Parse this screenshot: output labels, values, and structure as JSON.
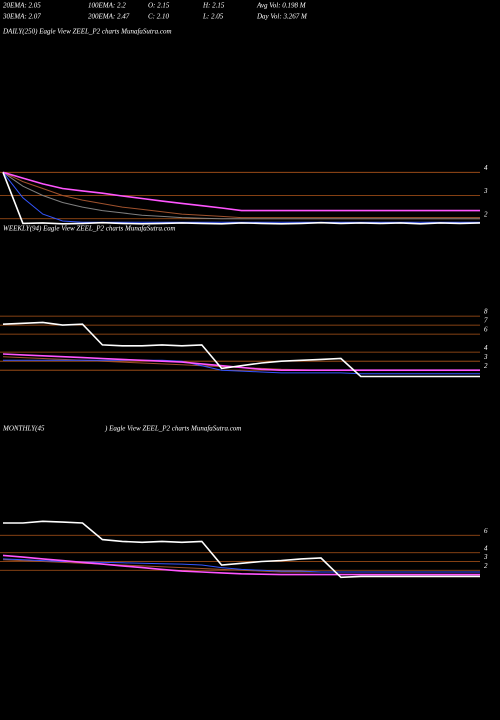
{
  "header": {
    "items": [
      [
        "20EMA: 2.05",
        "100EMA: 2.2",
        "O: 2.15",
        "H: 2.15",
        "Avg Vol: 0.198  M"
      ],
      [
        "30EMA: 2.07",
        "200EMA: 2.47",
        "C: 2.10",
        "L: 2.05",
        "Day Vol: 3.267 M"
      ]
    ]
  },
  "chart_data": [
    {
      "type": "line",
      "title": "DAILY(250) Eagle  View  ZEEL_P2  charts MunafaSutra.com",
      "ylim": [
        1.6,
        9.7
      ],
      "yticks": [
        4,
        3,
        2
      ],
      "grid": true,
      "grid_color": "#b0561a",
      "series": [
        {
          "color": "#808080",
          "values": [
            4,
            3.4,
            3.0,
            2.7,
            2.5,
            2.35,
            2.25,
            2.15,
            2.1,
            2.05,
            2.02,
            2.0,
            2.0,
            2.0,
            2.0,
            2.0,
            2.0,
            2.0,
            2.0,
            2.0,
            2.0,
            2.0,
            2.0,
            2.0,
            2.0
          ]
        },
        {
          "color": "#a0522d",
          "values": [
            4,
            3.6,
            3.3,
            3.0,
            2.8,
            2.65,
            2.5,
            2.4,
            2.3,
            2.2,
            2.15,
            2.1,
            2.05,
            2.05,
            2.05,
            2.05,
            2.05,
            2.05,
            2.05,
            2.05,
            2.05,
            2.05,
            2.05,
            2.05,
            2.05
          ]
        },
        {
          "color": "#3355ff",
          "values": [
            4,
            2.9,
            2.2,
            1.9,
            1.85,
            1.85,
            1.85,
            1.85,
            1.85,
            1.85,
            1.85,
            1.85,
            1.85,
            1.85,
            1.85,
            1.85,
            1.85,
            1.85,
            1.85,
            1.85,
            1.85,
            1.85,
            1.85,
            1.85,
            1.85
          ]
        },
        {
          "color": "#ff55ff",
          "values": [
            4,
            3.75,
            3.5,
            3.3,
            3.2,
            3.1,
            2.98,
            2.87,
            2.76,
            2.66,
            2.56,
            2.46,
            2.35,
            2.35,
            2.35,
            2.35,
            2.35,
            2.35,
            2.35,
            2.35,
            2.35,
            2.35,
            2.35,
            2.35,
            2.35
          ]
        },
        {
          "color": "#ffffff",
          "values": [
            4,
            1.8,
            1.82,
            1.78,
            1.8,
            1.83,
            1.8,
            1.78,
            1.8,
            1.82,
            1.8,
            1.78,
            1.82,
            1.8,
            1.78,
            1.8,
            1.83,
            1.8,
            1.82,
            1.8,
            1.82,
            1.78,
            1.82,
            1.8,
            1.82
          ]
        }
      ]
    },
    {
      "type": "line",
      "title": "WEEKLY(94) Eagle  View  ZEEL_P2  charts MunafaSutra.com",
      "ylim": [
        -0.2,
        17
      ],
      "yticks": [
        8,
        7,
        6,
        4,
        3,
        2
      ],
      "grid": true,
      "grid_color": "#b0561a",
      "series": [
        {
          "color": "#a0522d",
          "values": [
            3.5,
            3.4,
            3.3,
            3.2,
            3.1,
            3.0,
            2.9,
            2.8,
            2.7,
            2.6,
            2.5,
            2.4,
            2.3,
            2.2,
            2.1,
            2.05,
            2.0,
            2.0,
            2.0,
            2.0,
            2.0,
            2.0,
            2.0,
            2.0,
            2.0
          ]
        },
        {
          "color": "#3355ff",
          "values": [
            3.1,
            3.1,
            3.1,
            3.1,
            3.1,
            3.1,
            3.1,
            3.1,
            3.1,
            3.0,
            2.5,
            2.0,
            1.9,
            1.8,
            1.7,
            1.7,
            1.7,
            1.7,
            1.6,
            1.6,
            1.6,
            1.6,
            1.6,
            1.6,
            1.6
          ]
        },
        {
          "color": "#ff55ff",
          "values": [
            3.8,
            3.7,
            3.6,
            3.5,
            3.4,
            3.3,
            3.2,
            3.1,
            3.0,
            2.9,
            2.7,
            2.5,
            2.3,
            2.1,
            2.0,
            2.0,
            2.0,
            2.0,
            2.0,
            2.0,
            2.0,
            2.0,
            2.0,
            2.0,
            2.0
          ]
        },
        {
          "color": "#ffffff",
          "values": [
            7.1,
            7.2,
            7.3,
            7.0,
            7.1,
            4.8,
            4.7,
            4.7,
            4.8,
            4.7,
            4.8,
            2.2,
            2.5,
            2.8,
            3.0,
            3.1,
            3.2,
            3.3,
            1.3,
            1.3,
            1.3,
            1.3,
            1.3,
            1.3,
            1.3
          ]
        }
      ]
    },
    {
      "type": "line",
      "title": "MONTHLY(45",
      "subtitle": ") Eagle  View  ZEEL_P2  charts MunafaSutra.com",
      "ylim": [
        -1.4,
        18.6
      ],
      "yticks": [
        6,
        4,
        3,
        2
      ],
      "grid": true,
      "grid_color": "#b0561a",
      "series": [
        {
          "color": "#a0522d",
          "values": [
            3.2,
            3.1,
            3.0,
            2.9,
            2.8,
            2.7,
            2.6,
            2.5,
            2.4,
            2.3,
            2.2,
            2.1,
            2.0,
            1.9,
            1.8,
            1.8,
            1.8,
            1.8,
            1.8,
            1.8,
            1.8,
            1.8,
            1.8,
            1.8,
            1.8
          ]
        },
        {
          "color": "#3355ff",
          "values": [
            3.3,
            3.2,
            3.1,
            3.0,
            2.95,
            2.9,
            2.85,
            2.8,
            2.75,
            2.7,
            2.6,
            2.3,
            2.1,
            2.0,
            1.9,
            1.9,
            1.8,
            1.8,
            1.8,
            1.8,
            1.8,
            1.8,
            1.8,
            1.8,
            1.8
          ]
        },
        {
          "color": "#ff55ff",
          "values": [
            3.7,
            3.5,
            3.3,
            3.1,
            2.9,
            2.7,
            2.5,
            2.3,
            2.1,
            1.9,
            1.8,
            1.7,
            1.6,
            1.55,
            1.5,
            1.5,
            1.5,
            1.5,
            1.5,
            1.5,
            1.5,
            1.5,
            1.5,
            1.5,
            1.5
          ]
        },
        {
          "color": "#ffffff",
          "values": [
            7.4,
            7.4,
            7.6,
            7.5,
            7.4,
            5.5,
            5.3,
            5.2,
            5.3,
            5.2,
            5.3,
            2.6,
            2.8,
            3.0,
            3.1,
            3.3,
            3.4,
            1.2,
            1.3,
            1.3,
            1.3,
            1.3,
            1.3,
            1.3,
            1.3
          ]
        }
      ]
    }
  ]
}
